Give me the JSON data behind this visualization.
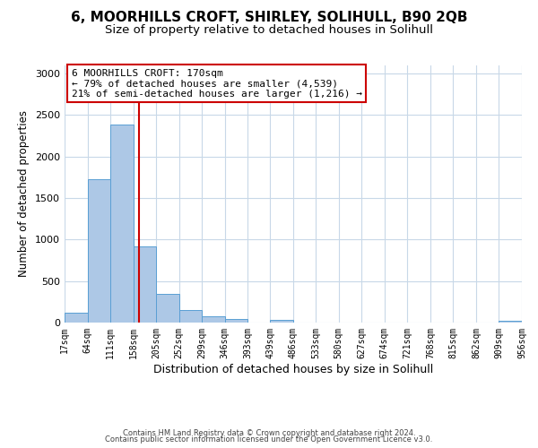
{
  "title1": "6, MOORHILLS CROFT, SHIRLEY, SOLIHULL, B90 2QB",
  "title2": "Size of property relative to detached houses in Solihull",
  "xlabel": "Distribution of detached houses by size in Solihull",
  "ylabel": "Number of detached properties",
  "bar_values": [
    120,
    1720,
    2380,
    920,
    340,
    155,
    80,
    45,
    0,
    30,
    0,
    0,
    0,
    0,
    0,
    0,
    0,
    0,
    0,
    20
  ],
  "bin_edges": [
    17,
    64,
    111,
    158,
    205,
    252,
    299,
    346,
    393,
    439,
    486,
    533,
    580,
    627,
    674,
    721,
    768,
    815,
    862,
    909,
    956
  ],
  "tick_labels": [
    "17sqm",
    "64sqm",
    "111sqm",
    "158sqm",
    "205sqm",
    "252sqm",
    "299sqm",
    "346sqm",
    "393sqm",
    "439sqm",
    "486sqm",
    "533sqm",
    "580sqm",
    "627sqm",
    "674sqm",
    "721sqm",
    "768sqm",
    "815sqm",
    "862sqm",
    "909sqm",
    "956sqm"
  ],
  "bar_color": "#adc8e6",
  "bar_edgecolor": "#5a9fd4",
  "vline_x": 170,
  "vline_color": "#cc0000",
  "annotation_title": "6 MOORHILLS CROFT: 170sqm",
  "annotation_line1": "← 79% of detached houses are smaller (4,539)",
  "annotation_line2": "21% of semi-detached houses are larger (1,216) →",
  "annotation_box_color": "#ffffff",
  "annotation_box_edgecolor": "#cc0000",
  "ylim": [
    0,
    3100
  ],
  "footer1": "Contains HM Land Registry data © Crown copyright and database right 2024.",
  "footer2": "Contains public sector information licensed under the Open Government Licence v3.0.",
  "bg_color": "#ffffff",
  "grid_color": "#c8d8e8",
  "title1_fontsize": 11,
  "title2_fontsize": 9.5,
  "annotation_fontsize": 8,
  "xlabel_fontsize": 9,
  "ylabel_fontsize": 8.5,
  "tick_fontsize": 7,
  "ytick_fontsize": 8
}
